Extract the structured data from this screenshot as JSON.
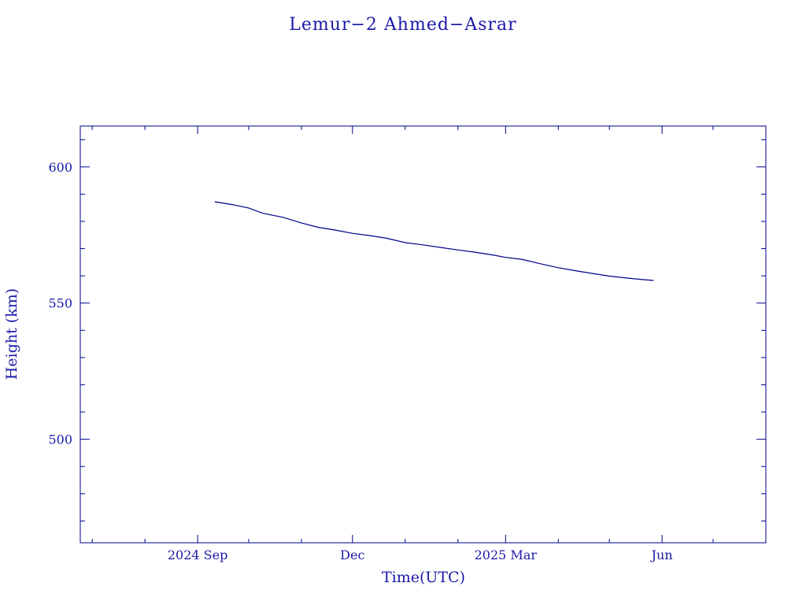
{
  "colors": {
    "axis": "#00008b",
    "text": "#1a1aa8",
    "line": "#00008b",
    "background": "#ffffff"
  },
  "chart_data": {
    "type": "line",
    "title": "Lemur−2 Ahmed−Asrar",
    "xlabel": "Time(UTC)",
    "ylabel": "Height (km)",
    "x_type": "date",
    "xlim": [
      "2024-06-24",
      "2025-08-01"
    ],
    "ylim": [
      462,
      615
    ],
    "x_ticks": [
      {
        "date": "2024-09-01",
        "label": "2024 Sep"
      },
      {
        "date": "2024-12-01",
        "label": "Dec"
      },
      {
        "date": "2025-03-01",
        "label": "2025 Mar"
      },
      {
        "date": "2025-06-01",
        "label": "Jun"
      }
    ],
    "x_minor_ticks": [
      "2024-07-01",
      "2024-08-01",
      "2024-10-01",
      "2024-11-01",
      "2025-01-01",
      "2025-02-01",
      "2025-04-01",
      "2025-05-01",
      "2025-07-01"
    ],
    "y_ticks": [
      {
        "value": 500,
        "label": "500"
      },
      {
        "value": 550,
        "label": "550"
      },
      {
        "value": 600,
        "label": "600"
      }
    ],
    "y_minor_step": 10,
    "grid": false,
    "series": [
      {
        "points": [
          [
            "2024-09-11",
            587.2
          ],
          [
            "2024-09-21",
            586.2
          ],
          [
            "2024-10-01",
            584.9
          ],
          [
            "2024-10-09",
            583.0
          ],
          [
            "2024-10-21",
            581.5
          ],
          [
            "2024-11-01",
            579.4
          ],
          [
            "2024-11-11",
            577.8
          ],
          [
            "2024-11-21",
            576.8
          ],
          [
            "2024-12-01",
            575.6
          ],
          [
            "2024-12-11",
            574.8
          ],
          [
            "2024-12-21",
            573.8
          ],
          [
            "2025-01-01",
            572.2
          ],
          [
            "2025-01-11",
            571.4
          ],
          [
            "2025-01-21",
            570.5
          ],
          [
            "2025-02-01",
            569.5
          ],
          [
            "2025-02-11",
            568.7
          ],
          [
            "2025-02-21",
            567.7
          ],
          [
            "2025-03-01",
            566.8
          ],
          [
            "2025-03-11",
            566.0
          ],
          [
            "2025-03-21",
            564.5
          ],
          [
            "2025-04-01",
            563.0
          ],
          [
            "2025-04-11",
            561.9
          ],
          [
            "2025-04-21",
            560.9
          ],
          [
            "2025-05-01",
            559.9
          ],
          [
            "2025-05-11",
            559.2
          ],
          [
            "2025-05-21",
            558.6
          ],
          [
            "2025-05-27",
            558.3
          ]
        ]
      }
    ]
  }
}
